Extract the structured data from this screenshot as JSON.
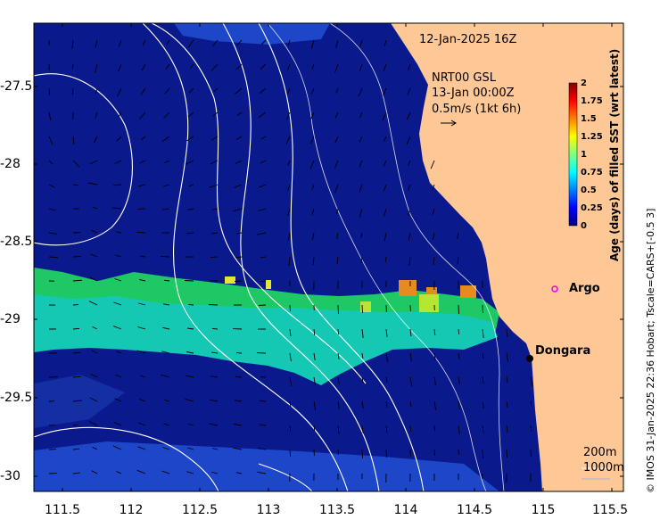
{
  "map": {
    "valid_time": "12-Jan-2025 16Z",
    "current_product": "NRT00 GSL",
    "current_time": "13-Jan 00:00Z",
    "vector_scale": "0.5m/s (1kt 6h)",
    "y_ticks": [
      "-27.5",
      "-28",
      "-28.5",
      "-29",
      "-29.5",
      "-30"
    ],
    "x_ticks": [
      "111.5",
      "112",
      "112.5",
      "113",
      "113.5",
      "114",
      "114.5",
      "115",
      "115.5"
    ],
    "places": [
      {
        "name": "Argo",
        "marker": "open-magenta-circle"
      },
      {
        "name": "Dongara",
        "marker": "black-dot"
      }
    ],
    "isobaths": [
      "200m",
      "1000m"
    ],
    "colorbar": {
      "title": "Age (days) of filled SST (wrt latest)",
      "ticks": [
        "2",
        "1.75",
        "1.5",
        "1.25",
        "1",
        "0.75",
        "0.5",
        "0.25",
        "0"
      ],
      "colors": [
        "#00007f",
        "#0000ff",
        "#007fff",
        "#00ffff",
        "#7fff7f",
        "#ffff00",
        "#ff7f00",
        "#ff0000",
        "#7f0000"
      ]
    },
    "credit": "© IMOS 31-Jan-2025 22:36 Hobart; Tscale=CARS+[-0.5 3]",
    "colors": {
      "ocean": "#0a1a8c",
      "ocean_light": "#1d46c8",
      "land": "#fdc896",
      "age_green": "#1ec864",
      "age_cyan": "#14c8b4",
      "age_orange": "#e68c1e"
    }
  }
}
